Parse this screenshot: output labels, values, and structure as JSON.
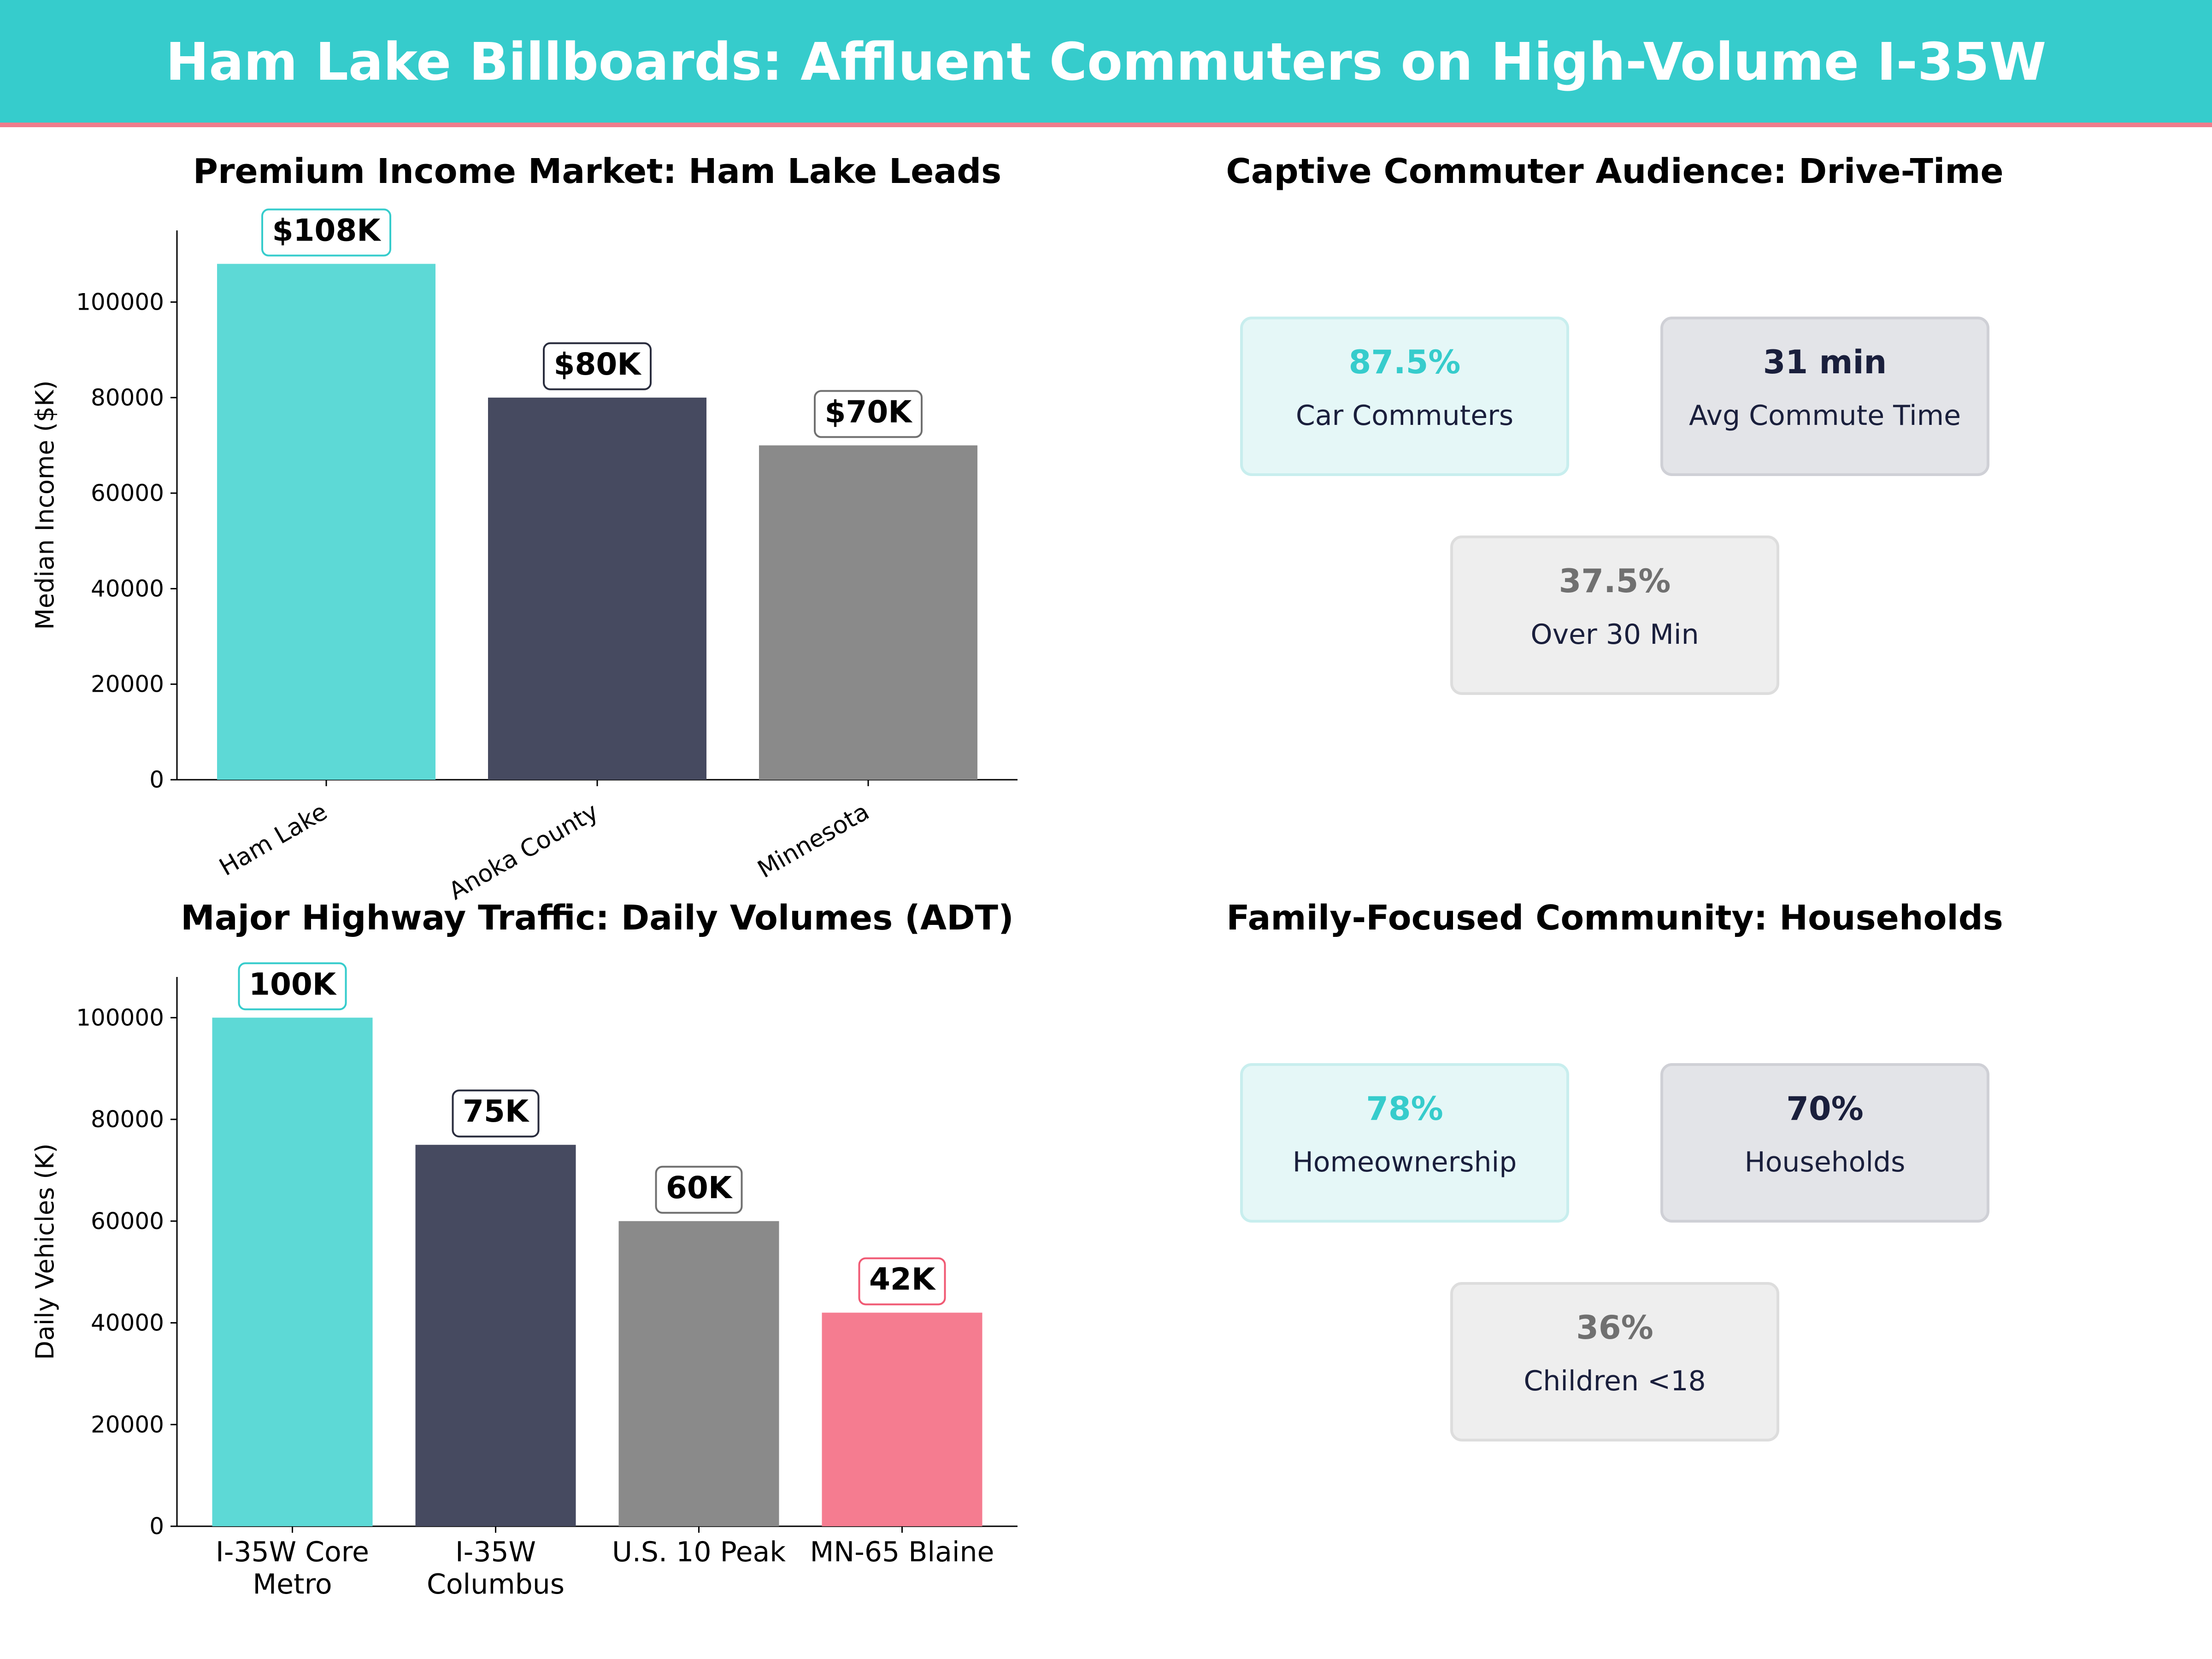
{
  "banner": {
    "title": "Ham Lake Billboards: Affluent Commuters on High-Volume I-35W"
  },
  "chart_data": [
    {
      "type": "bar",
      "title": "Premium Income Market: Ham Lake Leads",
      "xlabel": "",
      "ylabel": "Median Income ($K)",
      "categories": [
        "Ham Lake",
        "Anoka County",
        "Minnesota"
      ],
      "values": [
        108000,
        80000,
        70000
      ],
      "labels": [
        "$108K",
        "$80K",
        "$70K"
      ],
      "colors": [
        "#5dd9d6",
        "#464a60",
        "#8a8a8a"
      ],
      "label_border_colors": [
        "#36cccc",
        "#2a2d3e",
        "#707070"
      ],
      "ylim": [
        0,
        115000
      ],
      "yticks": [
        "0",
        "20000",
        "40000",
        "60000",
        "80000",
        "100000"
      ],
      "ytick_values": [
        0,
        20000,
        40000,
        60000,
        80000,
        100000
      ],
      "xtick_rotation": "rotated",
      "grid": false
    },
    {
      "type": "table",
      "title": "Captive Commuter Audience: Drive-Time",
      "cards": [
        {
          "value": "87.5%",
          "label": "Car Commuters",
          "value_color": "#36cccc",
          "bg": "#e5f7f7",
          "border": "#c8eeee"
        },
        {
          "value": "31 min",
          "label": "Avg Commute Time",
          "value_color": "#1a1f3c",
          "bg": "#e3e4e8",
          "border": "#cfd0d6"
        },
        {
          "value": "37.5%",
          "label": "Over 30 Min",
          "value_color": "#707070",
          "bg": "#eeeeee",
          "border": "#dddddd"
        }
      ]
    },
    {
      "type": "bar",
      "title": "Major Highway Traffic: Daily Volumes (ADT)",
      "xlabel": "",
      "ylabel": "Daily Vehicles (K)",
      "categories": [
        [
          "I-35W Core",
          "Metro"
        ],
        [
          "I-35W",
          "Columbus"
        ],
        [
          "U.S. 10 Peak"
        ],
        [
          "MN-65 Blaine"
        ]
      ],
      "values": [
        100000,
        75000,
        60000,
        42000
      ],
      "labels": [
        "100K",
        "75K",
        "60K",
        "42K"
      ],
      "colors": [
        "#5dd9d6",
        "#464a60",
        "#8a8a8a",
        "#f57c90"
      ],
      "label_border_colors": [
        "#36cccc",
        "#2a2d3e",
        "#707070",
        "#f05a74"
      ],
      "ylim": [
        0,
        108000
      ],
      "yticks": [
        "0",
        "20000",
        "40000",
        "60000",
        "80000",
        "100000"
      ],
      "ytick_values": [
        0,
        20000,
        40000,
        60000,
        80000,
        100000
      ],
      "xtick_rotation": "none",
      "grid": false
    },
    {
      "type": "table",
      "title": "Family-Focused Community: Households",
      "cards": [
        {
          "value": "78%",
          "label": "Homeownership",
          "value_color": "#36cccc",
          "bg": "#e5f7f7",
          "border": "#c8eeee"
        },
        {
          "value": "70%",
          "label": "Households",
          "value_color": "#1a1f3c",
          "bg": "#e3e4e8",
          "border": "#cfd0d6"
        },
        {
          "value": "36%",
          "label": "Children <18",
          "value_color": "#707070",
          "bg": "#eeeeee",
          "border": "#dddddd"
        }
      ]
    }
  ]
}
